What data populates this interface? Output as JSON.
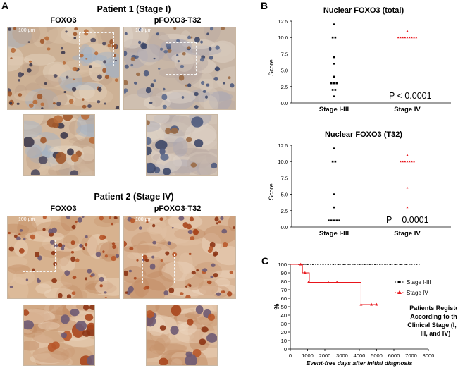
{
  "panels": {
    "a_letter": "A",
    "b_letter": "B",
    "c_letter": "C"
  },
  "patient1": {
    "title": "Patient 1 (Stage I)",
    "label_left": "FOXO3",
    "label_right": "pFOXO3-T32",
    "scale_left": "100 μm",
    "scale_right": "100 μm"
  },
  "patient2": {
    "title": "Patient 2 (Stage IV)",
    "label_left": "FOXO3",
    "label_right": "pFOXO3-T32",
    "scale_left": "100 μm",
    "scale_right": "100 μm"
  },
  "chart_data": [
    {
      "type": "scatter",
      "title": "Nuclear FOXO3 (total)",
      "ylabel": "Score",
      "categories": [
        "Stage I-III",
        "Stage IV"
      ],
      "ylim": [
        0,
        12.5
      ],
      "yticks": [
        "0.0",
        "2.5",
        "5.0",
        "7.5",
        "10.0",
        "12.5"
      ],
      "series": [
        {
          "name": "Stage I-III",
          "color": "#000000",
          "values": [
            12,
            10,
            10,
            7,
            6,
            4,
            3,
            3,
            3,
            2,
            2,
            1
          ]
        },
        {
          "name": "Stage IV",
          "color": "#e8151b",
          "values": [
            11,
            10,
            10,
            10,
            10,
            10,
            10,
            10,
            10,
            10
          ]
        }
      ],
      "annotation": "P < 0.0001"
    },
    {
      "type": "scatter",
      "title": "Nuclear  FOXO3 (T32)",
      "ylabel": "Score",
      "categories": [
        "Stage I-III",
        "Stage IV"
      ],
      "ylim": [
        0,
        12.5
      ],
      "yticks": [
        "0.0",
        "2.5",
        "5.0",
        "7.5",
        "10.0",
        "12.5"
      ],
      "series": [
        {
          "name": "Stage I-III",
          "color": "#000000",
          "values": [
            12,
            10,
            10,
            5,
            3,
            1,
            1,
            1,
            1,
            1
          ]
        },
        {
          "name": "Stage IV",
          "color": "#e8151b",
          "values": [
            11,
            10,
            10,
            10,
            10,
            10,
            10,
            10,
            6,
            3
          ]
        }
      ],
      "annotation": "P = 0.0001"
    },
    {
      "type": "line",
      "title": "",
      "xlabel": "Event-free days after initial diagnosis",
      "ylabel": "%",
      "xlim": [
        0,
        8000
      ],
      "ylim": [
        0,
        100
      ],
      "xticks": [
        "0",
        "1000",
        "2000",
        "3000",
        "4000",
        "5000",
        "6000",
        "7000",
        "8000"
      ],
      "yticks": [
        "0",
        "10",
        "20",
        "30",
        "40",
        "50",
        "60",
        "70",
        "80",
        "90",
        "100"
      ],
      "series": [
        {
          "name": "Stage I-III",
          "color": "#000000",
          "step_x": [
            0,
            7500
          ],
          "step_y": [
            100,
            100
          ],
          "markers": [
            500,
            800,
            1000,
            1300,
            1600,
            1900,
            2200,
            2500,
            2800,
            3100,
            3400,
            3700,
            4000,
            4300,
            4600,
            4900,
            5200,
            5500,
            5800,
            6100,
            6400,
            6700,
            7000,
            7300
          ]
        },
        {
          "name": "Stage IV",
          "color": "#e8151b",
          "step_x": [
            0,
            700,
            1000,
            1100,
            4100,
            5000
          ],
          "step_y": [
            100,
            90,
            90,
            78.8,
            52.5,
            52.5
          ],
          "markers_x": [
            600,
            850,
            1050,
            2200,
            2700,
            4100,
            4700,
            5000
          ],
          "markers_y": [
            100,
            90,
            78.8,
            78.8,
            78.8,
            52.5,
            52.5,
            52.5
          ]
        }
      ],
      "annotation": "Patients Register According to the Clinical Stage (I, II, III, and IV)"
    }
  ]
}
